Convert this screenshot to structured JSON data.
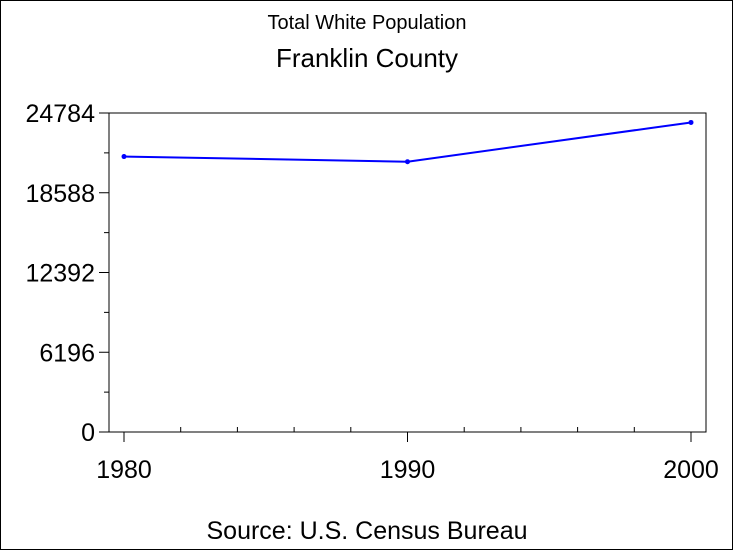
{
  "chart_data": {
    "type": "line",
    "subtitle": "Total White Population",
    "title": "Franklin County",
    "footnote": "Source: U.S. Census Bureau",
    "xlabel": "",
    "ylabel": "",
    "x": [
      1980,
      1990,
      2000
    ],
    "series": [
      {
        "values": [
          21400,
          21000,
          24050
        ],
        "color": "#0000ff"
      }
    ],
    "xlim": [
      1980,
      2000
    ],
    "ylim": [
      0,
      24784
    ],
    "x_ticks": [
      "1980",
      "1990",
      "2000"
    ],
    "y_ticks": [
      "0",
      "6196",
      "12392",
      "18588",
      "24784"
    ],
    "y_tick_values": [
      0,
      6196,
      12392,
      18588,
      24784
    ],
    "x_minor_ticks": [
      1982,
      1984,
      1986,
      1988,
      1992,
      1994,
      1996,
      1998
    ],
    "y_minor_ticks": [
      3098,
      9294,
      15490,
      21686
    ],
    "grid": false,
    "legend": "none",
    "colors": {
      "line": "#0000ff",
      "axis": "#000000",
      "background": "#ffffff"
    }
  }
}
